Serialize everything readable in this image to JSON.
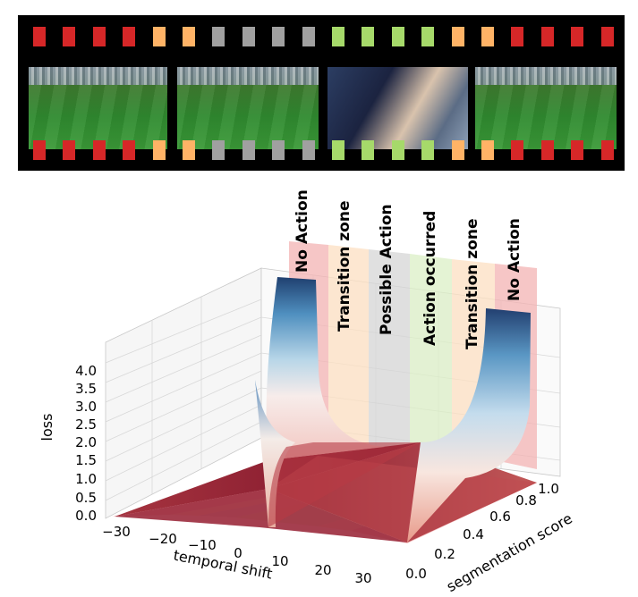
{
  "filmstrip": {
    "colors": {
      "red": "#d62728",
      "orange": "#ffb366",
      "gray": "#a0a0a0",
      "green": "#a6d96a"
    },
    "hole_pattern": [
      "red",
      "red",
      "red",
      "red",
      "orange",
      "orange",
      "gray",
      "gray",
      "gray",
      "gray",
      "green",
      "green",
      "green",
      "green",
      "orange",
      "orange",
      "red",
      "red",
      "red",
      "red"
    ],
    "frames": [
      "soccer-wide-shot",
      "soccer-wide-shot",
      "player-close-up",
      "soccer-wide-shot-with-scoreboard"
    ]
  },
  "zones": [
    {
      "label": "No Action",
      "color": "#f4b4b4"
    },
    {
      "label": "Transition zone",
      "color": "#fde0c2"
    },
    {
      "label": "Possible Action",
      "color": "#d6d6d6"
    },
    {
      "label": "Action occurred",
      "color": "#dcefc6"
    },
    {
      "label": "Transition zone",
      "color": "#fde0c2"
    },
    {
      "label": "No Action",
      "color": "#f4b4b4"
    }
  ],
  "chart_data": {
    "type": "surface",
    "xlabel": "temporal shift",
    "ylabel": "segmentation score",
    "zlabel": "loss",
    "x_ticks": [
      "−30",
      "−20",
      "−10",
      "0",
      "10",
      "20",
      "30"
    ],
    "y_ticks": [
      "0.0",
      "0.2",
      "0.4",
      "0.6",
      "0.8",
      "1.0"
    ],
    "z_ticks": [
      "0.0",
      "0.5",
      "1.0",
      "1.5",
      "2.0",
      "2.5",
      "3.0",
      "3.5",
      "4.0"
    ],
    "xlim": [
      -30,
      30
    ],
    "ylim": [
      0.0,
      1.0
    ],
    "zlim": [
      0.0,
      4.6
    ],
    "colormap": "RdBu (red low, blue high)"
  }
}
